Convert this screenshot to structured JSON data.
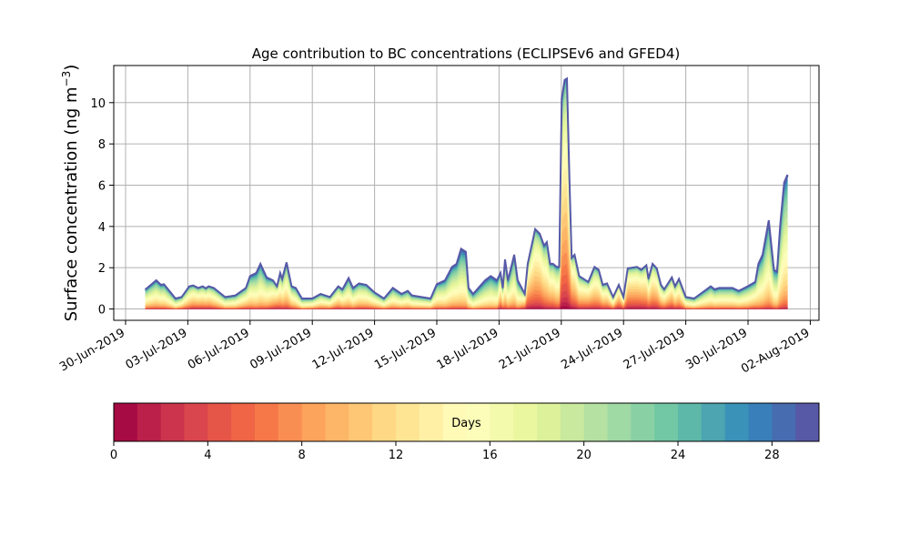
{
  "chart_data": {
    "type": "area",
    "stacked": true,
    "title": "Age contribution to BC concentrations (ECLIPSEv6 and GFED4)",
    "ylabel_main": "Surface concentration (ng m",
    "ylabel_sup": "−3",
    "ylabel_end": ")",
    "xlabel": "",
    "x_unit": "days since 30-Jun-2019",
    "xlim": [
      -0.57,
      33.42
    ],
    "ylim": [
      -0.55,
      11.8
    ],
    "grid": true,
    "y_ticks": [
      0,
      2,
      4,
      6,
      8,
      10
    ],
    "x_ticks": [
      {
        "day": 0,
        "label": "30-Jun-2019"
      },
      {
        "day": 3,
        "label": "03-Jul-2019"
      },
      {
        "day": 6,
        "label": "06-Jul-2019"
      },
      {
        "day": 9,
        "label": "09-Jul-2019"
      },
      {
        "day": 12,
        "label": "12-Jul-2019"
      },
      {
        "day": 15,
        "label": "15-Jul-2019"
      },
      {
        "day": 18,
        "label": "18-Jul-2019"
      },
      {
        "day": 21,
        "label": "21-Jul-2019"
      },
      {
        "day": 24,
        "label": "24-Jul-2019"
      },
      {
        "day": 27,
        "label": "27-Jul-2019"
      },
      {
        "day": 30,
        "label": "30-Jul-2019"
      },
      {
        "day": 33,
        "label": "02-Aug-2019"
      }
    ],
    "n_age_bins": 30,
    "total": {
      "x": [
        0.96,
        1.48,
        1.7,
        1.85,
        2.41,
        2.7,
        3.07,
        3.26,
        3.5,
        3.72,
        3.87,
        4.0,
        4.25,
        4.8,
        5.3,
        5.8,
        6.0,
        6.3,
        6.5,
        6.8,
        7.1,
        7.3,
        7.45,
        7.55,
        7.76,
        8.0,
        8.2,
        8.5,
        9.0,
        9.4,
        9.85,
        10.25,
        10.45,
        10.75,
        10.96,
        11.25,
        11.6,
        12.0,
        12.45,
        12.88,
        13.3,
        13.6,
        13.8,
        14.7,
        15.0,
        15.4,
        15.73,
        15.95,
        16.17,
        16.4,
        16.53,
        16.75,
        17.33,
        17.6,
        17.9,
        18.07,
        18.18,
        18.29,
        18.43,
        18.73,
        18.9,
        19.24,
        19.38,
        19.74,
        19.96,
        20.17,
        20.3,
        20.46,
        20.6,
        20.77,
        20.9,
        21.02,
        21.16,
        21.27,
        21.39,
        21.5,
        21.64,
        21.86,
        22.3,
        22.6,
        22.8,
        23.0,
        23.2,
        23.5,
        23.77,
        24.0,
        24.2,
        24.65,
        24.85,
        25.1,
        25.2,
        25.4,
        25.6,
        25.8,
        25.96,
        26.33,
        26.48,
        26.67,
        27.0,
        27.4,
        28.0,
        28.2,
        28.4,
        28.6,
        29.25,
        29.55,
        29.98,
        30.35,
        30.5,
        30.7,
        31.0,
        31.25,
        31.4,
        31.55,
        31.74,
        31.9
      ],
      "values": [
        0.95,
        1.39,
        1.17,
        1.2,
        0.51,
        0.58,
        1.1,
        1.14,
        1.02,
        1.1,
        1.0,
        1.1,
        1.02,
        0.58,
        0.66,
        1.02,
        1.6,
        1.75,
        2.19,
        1.53,
        1.39,
        1.1,
        1.75,
        1.46,
        2.26,
        1.1,
        1.02,
        0.51,
        0.51,
        0.73,
        0.58,
        1.1,
        0.95,
        1.5,
        1.02,
        1.24,
        1.17,
        0.8,
        0.51,
        1.02,
        0.73,
        0.88,
        0.66,
        0.51,
        1.2,
        1.39,
        2.04,
        2.19,
        2.92,
        2.77,
        1.02,
        0.73,
        1.39,
        1.6,
        1.39,
        1.75,
        1.02,
        2.4,
        1.39,
        2.63,
        1.39,
        0.73,
        2.19,
        3.87,
        3.65,
        3.07,
        3.24,
        2.19,
        2.19,
        2.04,
        2.04,
        10.2,
        11.1,
        11.17,
        6.4,
        2.48,
        2.63,
        1.6,
        1.31,
        2.04,
        1.9,
        1.17,
        1.24,
        0.58,
        1.17,
        0.58,
        1.97,
        2.04,
        1.9,
        2.12,
        1.46,
        2.19,
        1.97,
        1.17,
        0.95,
        1.53,
        1.1,
        1.46,
        0.58,
        0.51,
        0.95,
        1.1,
        0.95,
        1.02,
        1.02,
        0.88,
        1.1,
        1.31,
        2.19,
        2.63,
        4.3,
        1.9,
        1.82,
        4.09,
        6.13,
        6.5
      ],
      "mean_age_days": [
        16,
        16,
        16,
        16,
        17,
        15,
        14,
        13,
        13,
        13,
        13,
        13,
        14,
        16,
        16,
        15,
        16,
        17,
        17,
        16,
        14,
        12,
        14,
        14,
        15,
        15,
        16,
        17,
        16,
        15,
        15,
        14,
        15,
        16,
        16,
        15,
        15,
        15,
        16,
        16,
        16,
        16,
        16,
        16,
        16,
        17,
        17,
        17,
        18,
        18,
        17,
        18,
        18,
        18,
        18,
        13,
        14,
        16,
        16,
        17,
        17,
        12,
        11,
        12,
        12,
        13,
        14,
        13,
        13,
        14,
        14,
        12,
        12,
        12,
        12,
        11,
        12,
        13,
        12,
        13,
        13,
        13,
        13,
        14,
        11,
        12,
        11,
        11,
        11,
        12,
        12,
        12,
        12,
        13,
        13,
        12,
        13,
        13,
        15,
        16,
        16,
        16,
        16,
        16,
        16,
        16,
        16,
        15,
        17,
        17,
        17,
        17,
        17,
        17,
        17,
        17
      ]
    },
    "colorbar": {
      "label": "Days",
      "range": [
        0,
        30
      ],
      "ticks": [
        0,
        4,
        8,
        12,
        16,
        20,
        24,
        28
      ],
      "colormap_anchors": [
        "#9e0142",
        "#d53e4f",
        "#f46d43",
        "#fdae61",
        "#fee08b",
        "#ffffbf",
        "#e6f598",
        "#abdda4",
        "#66c2a5",
        "#3288bd",
        "#5e4fa2"
      ]
    }
  }
}
